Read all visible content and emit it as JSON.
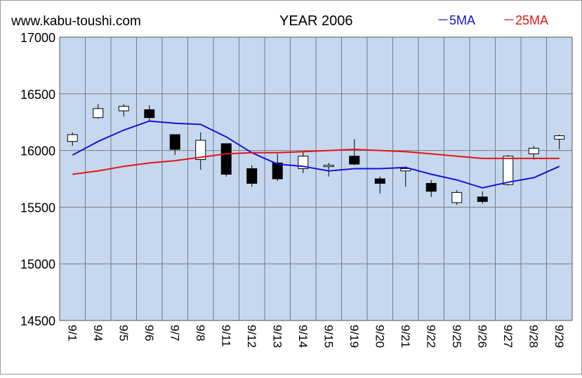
{
  "header": {
    "site": "www.kabu-toushi.com",
    "title": "YEAR 2006",
    "legend_5ma": "－5MA",
    "legend_25ma": "－25MA"
  },
  "colors": {
    "plot_bg": "#c5d8f0",
    "grid": "#7a7a7a",
    "ma5": "#1414d2",
    "ma25": "#e61414",
    "candle_up_fill": "#ffffff",
    "candle_down_fill": "#000000"
  },
  "chart_data": {
    "type": "candlestick",
    "title": "YEAR 2006",
    "ylim": [
      14500,
      17000
    ],
    "yticks": [
      14500,
      15000,
      15500,
      16000,
      16500,
      17000
    ],
    "categories": [
      "9/1",
      "9/4",
      "9/5",
      "9/6",
      "9/7",
      "9/8",
      "9/11",
      "9/12",
      "9/13",
      "9/14",
      "9/15",
      "9/19",
      "9/20",
      "9/21",
      "9/22",
      "9/25",
      "9/26",
      "9/27",
      "9/28",
      "9/29"
    ],
    "candles": [
      {
        "open": 16080,
        "high": 16160,
        "low": 16040,
        "close": 16140
      },
      {
        "open": 16290,
        "high": 16410,
        "low": 16280,
        "close": 16370
      },
      {
        "open": 16350,
        "high": 16410,
        "low": 16300,
        "close": 16390
      },
      {
        "open": 16360,
        "high": 16400,
        "low": 16260,
        "close": 16290
      },
      {
        "open": 16140,
        "high": 16140,
        "low": 15960,
        "close": 16010
      },
      {
        "open": 15920,
        "high": 16160,
        "low": 15830,
        "close": 16090
      },
      {
        "open": 16060,
        "high": 16060,
        "low": 15770,
        "close": 15790
      },
      {
        "open": 15840,
        "high": 15870,
        "low": 15680,
        "close": 15710
      },
      {
        "open": 15890,
        "high": 15970,
        "low": 15730,
        "close": 15750
      },
      {
        "open": 15840,
        "high": 15990,
        "low": 15800,
        "close": 15950
      },
      {
        "open": 15860,
        "high": 15890,
        "low": 15770,
        "close": 15870
      },
      {
        "open": 15950,
        "high": 16100,
        "low": 15870,
        "close": 15880
      },
      {
        "open": 15750,
        "high": 15770,
        "low": 15620,
        "close": 15710
      },
      {
        "open": 15820,
        "high": 15860,
        "low": 15680,
        "close": 15840
      },
      {
        "open": 15710,
        "high": 15740,
        "low": 15590,
        "close": 15640
      },
      {
        "open": 15540,
        "high": 15650,
        "low": 15520,
        "close": 15630
      },
      {
        "open": 15590,
        "high": 15640,
        "low": 15530,
        "close": 15550
      },
      {
        "open": 15700,
        "high": 15960,
        "low": 15690,
        "close": 15950
      },
      {
        "open": 15970,
        "high": 16040,
        "low": 15920,
        "close": 16020
      },
      {
        "open": 16100,
        "high": 16140,
        "low": 16010,
        "close": 16130
      }
    ],
    "series": [
      {
        "name": "5MA",
        "values": [
          15960,
          16080,
          16180,
          16260,
          16240,
          16230,
          16120,
          15980,
          15880,
          15860,
          15820,
          15840,
          15840,
          15850,
          15790,
          15740,
          15670,
          15720,
          15760,
          15860
        ]
      },
      {
        "name": "25MA",
        "values": [
          15790,
          15820,
          15860,
          15890,
          15910,
          15940,
          15970,
          15980,
          15980,
          15990,
          16000,
          16010,
          16000,
          15990,
          15970,
          15950,
          15930,
          15930,
          15930,
          15930
        ]
      }
    ],
    "grid": true,
    "legend": "top-right"
  }
}
